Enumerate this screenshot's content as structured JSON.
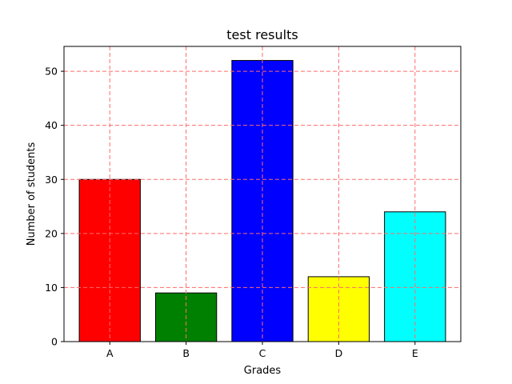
{
  "chart_data": {
    "type": "bar",
    "title": "test results",
    "xlabel": "Grades",
    "ylabel": "Number of students",
    "categories": [
      "A",
      "B",
      "C",
      "D",
      "E"
    ],
    "values": [
      30,
      9,
      52,
      12,
      24
    ],
    "colors": [
      "#ff0000",
      "#008000",
      "#0000ff",
      "#ffff00",
      "#00ffff"
    ],
    "edge_color": "#000000",
    "ylim": [
      0,
      54.6
    ],
    "yticks": [
      0,
      10,
      20,
      30,
      40,
      50
    ],
    "grid": true,
    "grid_color": "#ff6b6b",
    "grid_style": "dashed"
  }
}
